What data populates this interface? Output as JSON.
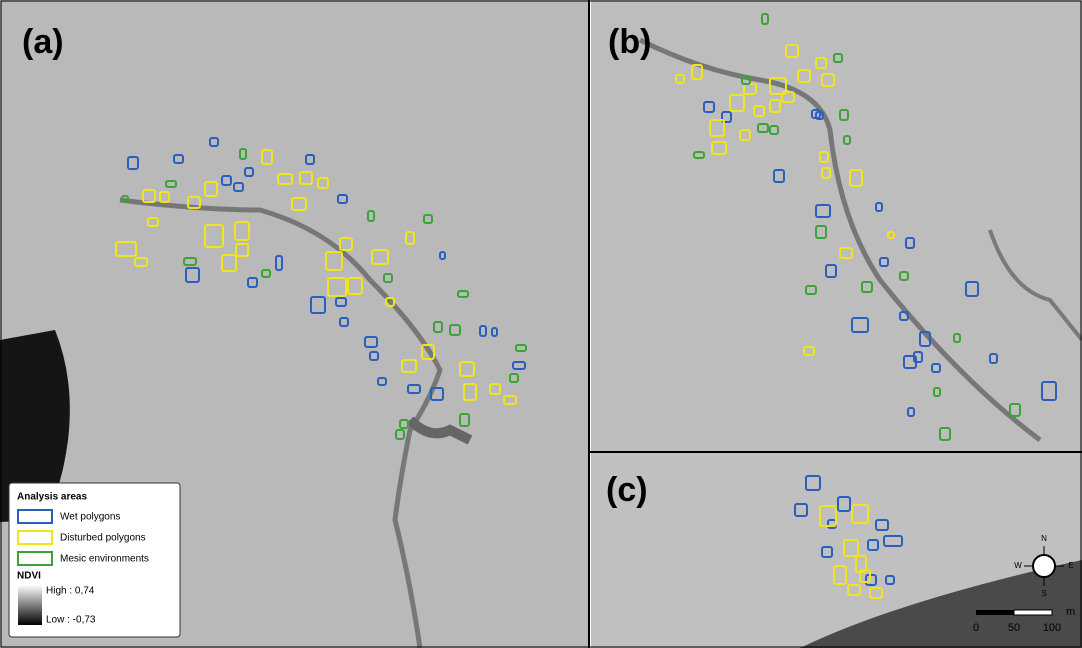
{
  "panels": [
    {
      "label": "(a)"
    },
    {
      "label": "(b)"
    },
    {
      "label": "(c)"
    }
  ],
  "legend": {
    "title": "Analysis areas",
    "items": [
      "Wet polygons",
      "Disturbed polygons",
      "Mesic environments"
    ],
    "ndvi": {
      "title": "NDVI",
      "high": "High : 0,74",
      "low": "Low : -0,73"
    }
  },
  "compass": {
    "north": "N",
    "east": "E",
    "south": "S",
    "west": "W"
  },
  "scale_bar": {
    "unit": "m",
    "labels": [
      0,
      50,
      100
    ]
  }
}
